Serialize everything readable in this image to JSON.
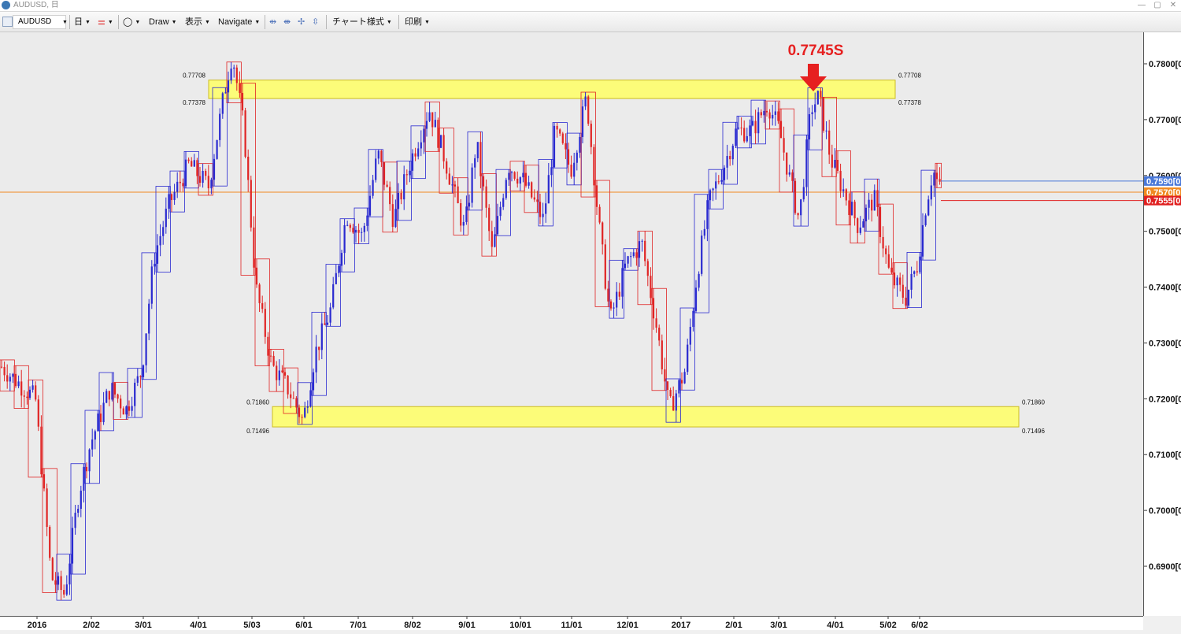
{
  "window": {
    "title": "AUDUSD, 日",
    "minimize": "—",
    "restore": "▢",
    "close": "✕"
  },
  "toolbar": {
    "symbol": "AUDUSD",
    "timeframe": "日",
    "draw": "Draw",
    "display": "表示",
    "navigate": "Navigate",
    "chart_style": "チャート様式",
    "print": "印刷"
  },
  "annotation": {
    "label": "0.7745S",
    "color": "#e62020"
  },
  "zones": [
    {
      "upper": "0.77708",
      "lower": "0.77378",
      "upper_value": 0.77708,
      "lower_value": 0.77378
    },
    {
      "upper": "0.71860",
      "lower": "0.71496",
      "upper_value": 0.7186,
      "lower_value": 0.71496
    }
  ],
  "price_axis": {
    "labels": [
      "0.7800[0",
      "0.7700[0",
      "0.7600[0",
      "0.7500[0",
      "0.7400[0",
      "0.7300[0",
      "0.7200[0",
      "0.7100[0",
      "0.7000[0",
      "0.6900[0"
    ],
    "values": [
      0.78,
      0.77,
      0.76,
      0.75,
      0.74,
      0.73,
      0.72,
      0.71,
      0.7,
      0.69
    ]
  },
  "price_markers": [
    {
      "label": "0.7590[0",
      "value": 0.759,
      "color": "#4a78d8"
    },
    {
      "label": "0.7570[0",
      "value": 0.757,
      "color": "#f08a20"
    },
    {
      "label": "0.7555[0",
      "value": 0.7555,
      "color": "#e02020"
    }
  ],
  "current_price": 0.757,
  "date_axis": {
    "labels": [
      "2016",
      "2/02",
      "3/01",
      "4/01",
      "5/03",
      "6/01",
      "7/01",
      "8/02",
      "9/01",
      "10/01",
      "11/01",
      "12/01",
      "2017",
      "2/01",
      "3/01",
      "4/01",
      "5/02",
      "6/02"
    ]
  },
  "colors": {
    "bull": "#2a2ad0",
    "bear": "#e02424",
    "zone_fill": "#ffff66",
    "zone_stroke": "#c8b400",
    "hline": "#f08a20"
  },
  "chart_data": {
    "type": "candlestick",
    "symbol": "AUDUSD",
    "timeframe": "日",
    "ylim": [
      0.682,
      0.7845
    ],
    "anchors": [
      [
        0,
        0.726
      ],
      [
        45,
        0.72
      ],
      [
        65,
        0.688
      ],
      [
        82,
        0.685
      ],
      [
        100,
        0.703
      ],
      [
        115,
        0.712
      ],
      [
        140,
        0.722
      ],
      [
        160,
        0.718
      ],
      [
        180,
        0.725
      ],
      [
        195,
        0.745
      ],
      [
        215,
        0.755
      ],
      [
        240,
        0.762
      ],
      [
        265,
        0.758
      ],
      [
        285,
        0.775
      ],
      [
        295,
        0.782
      ],
      [
        310,
        0.768
      ],
      [
        325,
        0.74
      ],
      [
        345,
        0.726
      ],
      [
        365,
        0.722
      ],
      [
        385,
        0.716
      ],
      [
        400,
        0.728
      ],
      [
        420,
        0.736
      ],
      [
        440,
        0.753
      ],
      [
        460,
        0.749
      ],
      [
        480,
        0.764
      ],
      [
        500,
        0.752
      ],
      [
        520,
        0.762
      ],
      [
        545,
        0.772
      ],
      [
        565,
        0.763
      ],
      [
        590,
        0.75
      ],
      [
        605,
        0.766
      ],
      [
        625,
        0.746
      ],
      [
        645,
        0.762
      ],
      [
        665,
        0.759
      ],
      [
        690,
        0.752
      ],
      [
        705,
        0.768
      ],
      [
        725,
        0.761
      ],
      [
        745,
        0.774
      ],
      [
        760,
        0.752
      ],
      [
        775,
        0.734
      ],
      [
        795,
        0.744
      ],
      [
        815,
        0.748
      ],
      [
        835,
        0.732
      ],
      [
        850,
        0.718
      ],
      [
        870,
        0.725
      ],
      [
        885,
        0.742
      ],
      [
        900,
        0.755
      ],
      [
        920,
        0.762
      ],
      [
        935,
        0.768
      ],
      [
        955,
        0.768
      ],
      [
        975,
        0.773
      ],
      [
        990,
        0.768
      ],
      [
        1005,
        0.758
      ],
      [
        1015,
        0.752
      ],
      [
        1030,
        0.772
      ],
      [
        1040,
        0.774
      ],
      [
        1055,
        0.763
      ],
      [
        1075,
        0.756
      ],
      [
        1090,
        0.751
      ],
      [
        1110,
        0.756
      ],
      [
        1130,
        0.742
      ],
      [
        1150,
        0.738
      ],
      [
        1165,
        0.744
      ],
      [
        1175,
        0.754
      ],
      [
        1185,
        0.761
      ],
      [
        1195,
        0.757
      ]
    ]
  }
}
